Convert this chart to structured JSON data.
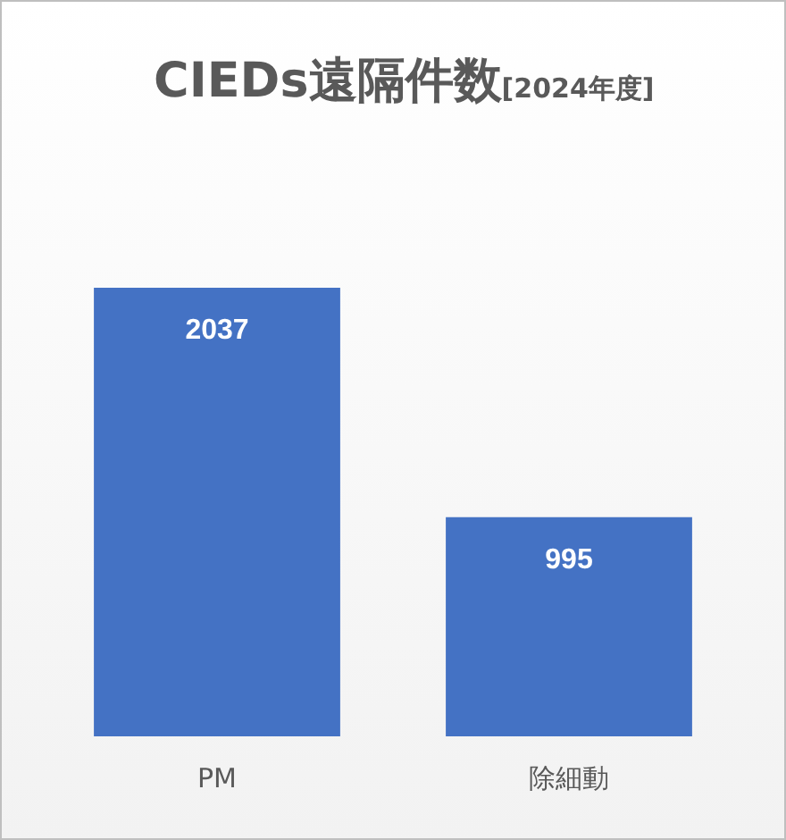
{
  "chart_data": {
    "type": "bar",
    "title": "CIEDs遠隔件数",
    "subtitle": "[2024年度]",
    "categories": [
      "PM",
      "除細動"
    ],
    "values": [
      2037,
      995
    ],
    "color": "#4472c4",
    "data_labels": true
  }
}
